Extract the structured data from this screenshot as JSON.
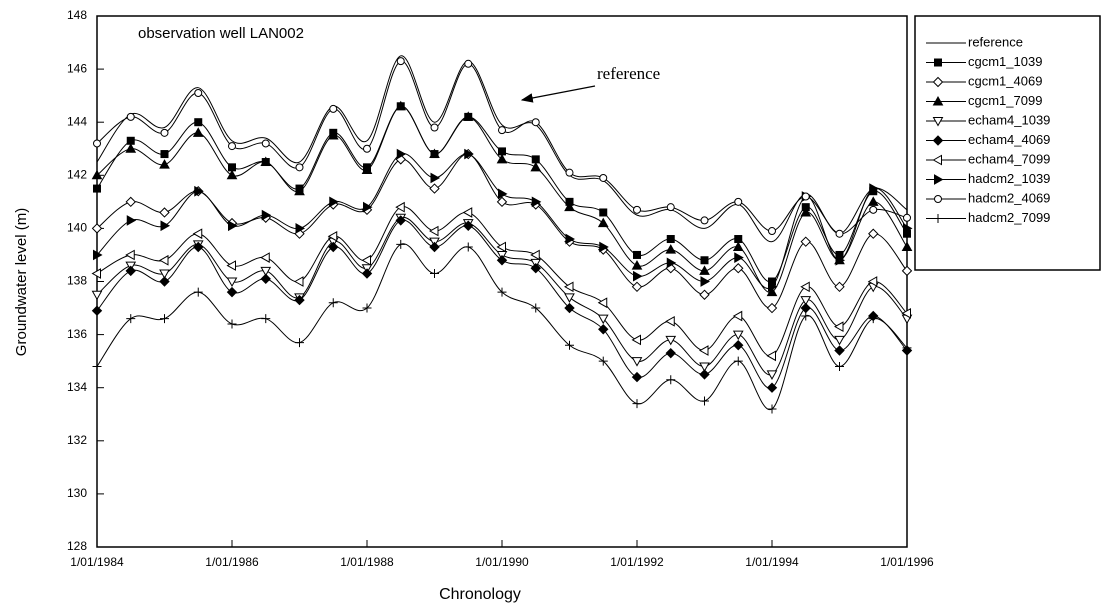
{
  "chart_data": {
    "type": "line",
    "title": "observation well LAN002",
    "x_label": "Chronology",
    "y_label": "Groundwater level (m)",
    "annotation": "reference",
    "xlim": [
      1984,
      1996
    ],
    "xticks": [
      {
        "value": 1984,
        "label": "1/01/1984"
      },
      {
        "value": 1986,
        "label": "1/01/1986"
      },
      {
        "value": 1988,
        "label": "1/01/1988"
      },
      {
        "value": 1990,
        "label": "1/01/1990"
      },
      {
        "value": 1992,
        "label": "1/01/1992"
      },
      {
        "value": 1994,
        "label": "1/01/1994"
      },
      {
        "value": 1996,
        "label": "1/01/1996"
      }
    ],
    "ylim": [
      128,
      148
    ],
    "yticks": [
      128,
      130,
      132,
      134,
      136,
      138,
      140,
      142,
      144,
      146,
      148
    ],
    "legend": "outside-right",
    "x": [
      1984,
      1984.5,
      1985,
      1985.5,
      1986,
      1986.5,
      1987,
      1987.5,
      1988,
      1988.5,
      1989,
      1989.5,
      1990,
      1990.5,
      1991,
      1991.5,
      1992,
      1992.5,
      1993,
      1993.5,
      1994,
      1994.5,
      1995,
      1995.5,
      1996
    ],
    "series": [
      {
        "name": "reference",
        "color": "#000000",
        "marker": "none",
        "values": [
          142.5,
          144.3,
          143.8,
          145.3,
          143.3,
          143.4,
          142.5,
          144.6,
          143.3,
          146.5,
          144.0,
          146.3,
          143.9,
          143.9,
          142.0,
          141.8,
          140.5,
          140.7,
          140.0,
          140.9,
          139.5,
          141.3,
          139.8,
          141.5,
          140.7
        ]
      },
      {
        "name": "cgcm1_1039",
        "color": "#000000",
        "marker": "square",
        "values": [
          141.5,
          143.3,
          142.8,
          144.0,
          142.3,
          142.5,
          141.5,
          143.6,
          142.3,
          144.6,
          142.8,
          144.2,
          142.9,
          142.6,
          141.0,
          140.6,
          139.0,
          139.6,
          138.8,
          139.6,
          138.0,
          140.8,
          139.0,
          141.4,
          139.8
        ]
      },
      {
        "name": "cgcm1_4069",
        "color": "#000000",
        "marker": "open-diamond",
        "values": [
          140.0,
          141.0,
          140.6,
          141.4,
          140.2,
          140.4,
          139.8,
          140.9,
          140.7,
          142.6,
          141.5,
          142.8,
          141.0,
          140.9,
          139.5,
          139.2,
          137.8,
          138.5,
          137.5,
          138.5,
          137.0,
          139.5,
          137.8,
          139.8,
          138.4
        ]
      },
      {
        "name": "cgcm1_7099",
        "color": "#000000",
        "marker": "triangle",
        "values": [
          142.0,
          143.0,
          142.4,
          143.6,
          142.0,
          142.5,
          141.4,
          143.5,
          142.2,
          144.6,
          142.8,
          144.2,
          142.6,
          142.3,
          140.8,
          140.2,
          138.6,
          139.2,
          138.4,
          139.3,
          137.6,
          140.6,
          138.8,
          141.0,
          139.3
        ]
      },
      {
        "name": "echam4_1039",
        "color": "#000000",
        "marker": "open-down-triangle",
        "values": [
          137.5,
          138.6,
          138.3,
          139.4,
          138.0,
          138.4,
          137.4,
          139.5,
          138.5,
          140.4,
          139.5,
          140.2,
          139.0,
          138.7,
          137.4,
          136.6,
          135.0,
          135.8,
          134.8,
          136.0,
          134.5,
          137.3,
          135.8,
          137.8,
          136.6
        ]
      },
      {
        "name": "echam4_4069",
        "color": "#000000",
        "marker": "diamond",
        "values": [
          136.9,
          138.4,
          138.0,
          139.3,
          137.6,
          138.1,
          137.3,
          139.3,
          138.3,
          140.3,
          139.3,
          140.1,
          138.8,
          138.5,
          137.0,
          136.2,
          134.4,
          135.3,
          134.5,
          135.6,
          134.0,
          137.0,
          135.4,
          136.7,
          135.4
        ]
      },
      {
        "name": "echam4_7099",
        "color": "#000000",
        "marker": "open-left-triangle",
        "values": [
          138.3,
          139.0,
          138.8,
          139.8,
          138.6,
          138.9,
          138.0,
          139.7,
          138.8,
          140.8,
          139.9,
          140.6,
          139.3,
          139.0,
          137.8,
          137.2,
          135.8,
          136.5,
          135.4,
          136.7,
          135.2,
          137.8,
          136.3,
          138.0,
          136.8
        ]
      },
      {
        "name": "hadcm2_1039",
        "color": "#000000",
        "marker": "right-triangle",
        "values": [
          139.0,
          140.3,
          140.1,
          141.4,
          140.1,
          140.5,
          140.0,
          141.0,
          140.8,
          142.8,
          141.9,
          142.8,
          141.3,
          141.0,
          139.6,
          139.3,
          138.2,
          138.7,
          138.0,
          138.9,
          137.8,
          141.2,
          138.8,
          141.5,
          140.0
        ]
      },
      {
        "name": "hadcm2_4069",
        "color": "#000000",
        "marker": "open-circle",
        "values": [
          143.2,
          144.2,
          143.6,
          145.1,
          143.1,
          143.2,
          142.3,
          144.5,
          143.0,
          146.3,
          143.8,
          146.2,
          143.7,
          144.0,
          142.1,
          141.9,
          140.7,
          140.8,
          140.3,
          141.0,
          139.9,
          141.2,
          139.8,
          140.7,
          140.4
        ]
      },
      {
        "name": "hadcm2_7099",
        "color": "#000000",
        "marker": "plus",
        "values": [
          134.8,
          136.6,
          136.6,
          137.6,
          136.4,
          136.6,
          135.7,
          137.2,
          137.0,
          139.4,
          138.3,
          139.3,
          137.6,
          137.0,
          135.6,
          135.0,
          133.4,
          134.3,
          133.5,
          135.0,
          133.2,
          136.7,
          134.8,
          136.6,
          135.5
        ]
      }
    ]
  }
}
